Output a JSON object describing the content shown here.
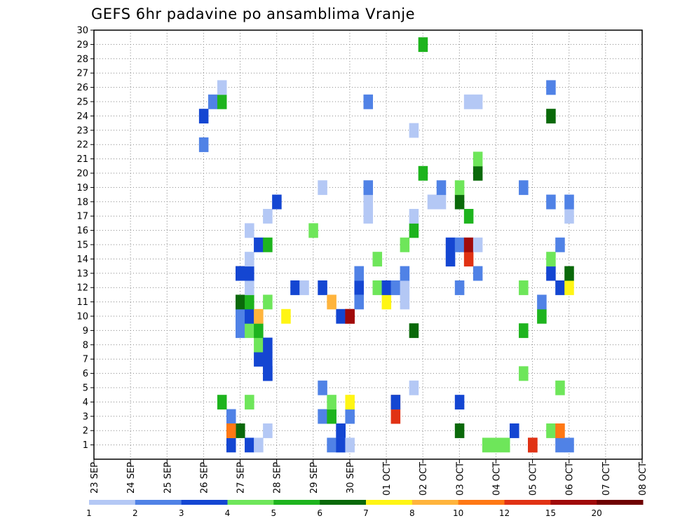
{
  "chart_data": {
    "type": "heatmap",
    "title": "GEFS 6hr padavine po ansamblima Vranje",
    "x_tick_labels": [
      "23 SEP",
      "24 SEP",
      "25 SEP",
      "26 SEP",
      "27 SEP",
      "28 SEP",
      "29 SEP",
      "30 SEP",
      "01 OCT",
      "02 OCT",
      "03 OCT",
      "04 OCT",
      "05 OCT",
      "06 OCT",
      "07 OCT",
      "08 OCT"
    ],
    "y_tick_labels": [
      "1",
      "2",
      "3",
      "4",
      "5",
      "6",
      "7",
      "8",
      "9",
      "10",
      "11",
      "12",
      "13",
      "14",
      "15",
      "16",
      "17",
      "18",
      "19",
      "20",
      "21",
      "22",
      "23",
      "24",
      "25",
      "26",
      "27",
      "28",
      "29",
      "30"
    ],
    "x_range": [
      "23 SEP 00Z",
      "08 OCT 00Z"
    ],
    "y_range": [
      0,
      30
    ],
    "grid": true,
    "legend": {
      "position": "bottom",
      "labels": [
        "1",
        "2",
        "3",
        "4",
        "5",
        "6",
        "7",
        "8",
        "10",
        "12",
        "15",
        "20"
      ],
      "colors": [
        "#b4c8f5",
        "#5082e6",
        "#1446d2",
        "#6ee65a",
        "#1eb41e",
        "#0a690a",
        "#fff514",
        "#ffb43c",
        "#ff7814",
        "#e13214",
        "#a00a0a",
        "#6e0000"
      ]
    },
    "cell_format": "[x_step_6hr, ensemble_member, class_index]",
    "cells": [
      [
        15,
        3,
        2
      ],
      [
        25,
        3,
        2
      ],
      [
        25,
        5,
        2
      ],
      [
        26,
        3,
        2
      ],
      [
        27,
        2,
        3
      ],
      [
        16,
        10,
        2
      ],
      [
        16,
        13,
        8
      ],
      [
        30,
        25,
        2
      ],
      [
        27,
        2,
        3
      ],
      [
        27,
        1,
        2
      ],
      [
        14,
        4,
        5
      ],
      [
        17,
        1,
        3
      ],
      [
        15,
        2,
        5
      ],
      [
        16,
        2,
        6
      ],
      [
        17,
        4,
        4
      ],
      [
        19,
        6,
        3
      ],
      [
        19,
        7,
        3
      ],
      [
        12,
        22,
        2
      ],
      [
        12,
        24,
        3
      ],
      [
        13,
        25,
        2
      ],
      [
        14,
        25,
        5
      ],
      [
        14,
        26,
        1
      ],
      [
        15,
        1,
        3
      ],
      [
        15,
        2,
        4
      ],
      [
        15,
        2,
        9
      ],
      [
        16,
        9,
        2
      ],
      [
        16,
        11,
        6
      ],
      [
        16,
        13,
        3
      ],
      [
        17,
        9,
        4
      ],
      [
        17,
        10,
        3
      ],
      [
        17,
        11,
        5
      ],
      [
        17,
        12,
        1
      ],
      [
        17,
        13,
        3
      ],
      [
        17,
        14,
        1
      ],
      [
        17,
        16,
        1
      ],
      [
        18,
        1,
        1
      ],
      [
        18,
        7,
        3
      ],
      [
        18,
        8,
        4
      ],
      [
        18,
        9,
        5
      ],
      [
        18,
        10,
        8
      ],
      [
        18,
        15,
        3
      ],
      [
        19,
        2,
        1
      ],
      [
        19,
        6,
        3
      ],
      [
        19,
        8,
        3
      ],
      [
        19,
        11,
        4
      ],
      [
        19,
        15,
        5
      ],
      [
        19,
        17,
        1
      ],
      [
        20,
        18,
        3
      ],
      [
        21,
        10,
        7
      ],
      [
        22,
        12,
        3
      ],
      [
        23,
        12,
        1
      ],
      [
        24,
        16,
        4
      ],
      [
        25,
        12,
        3
      ],
      [
        25,
        19,
        1
      ],
      [
        26,
        1,
        2
      ],
      [
        26,
        3,
        5
      ],
      [
        26,
        4,
        4
      ],
      [
        26,
        11,
        8
      ],
      [
        27,
        1,
        3
      ],
      [
        27,
        10,
        3
      ],
      [
        28,
        1,
        1
      ],
      [
        28,
        3,
        2
      ],
      [
        28,
        4,
        7
      ],
      [
        28,
        10,
        10
      ],
      [
        28,
        10,
        11
      ],
      [
        29,
        12,
        3
      ],
      [
        29,
        11,
        2
      ],
      [
        29,
        13,
        2
      ],
      [
        30,
        17,
        1
      ],
      [
        30,
        18,
        1
      ],
      [
        30,
        19,
        2
      ],
      [
        31,
        12,
        4
      ],
      [
        31,
        14,
        4
      ],
      [
        32,
        11,
        7
      ],
      [
        32,
        12,
        3
      ],
      [
        33,
        3,
        10
      ],
      [
        33,
        4,
        9
      ],
      [
        33,
        4,
        3
      ],
      [
        33,
        12,
        2
      ],
      [
        34,
        11,
        1
      ],
      [
        34,
        12,
        1
      ],
      [
        34,
        13,
        2
      ],
      [
        34,
        15,
        4
      ],
      [
        35,
        5,
        1
      ],
      [
        35,
        9,
        6
      ],
      [
        35,
        16,
        5
      ],
      [
        35,
        17,
        1
      ],
      [
        35,
        23,
        1
      ],
      [
        36,
        20,
        5
      ],
      [
        36,
        29,
        5
      ],
      [
        37,
        18,
        1
      ],
      [
        38,
        18,
        1
      ],
      [
        38,
        19,
        2
      ],
      [
        39,
        14,
        3
      ],
      [
        39,
        15,
        3
      ],
      [
        40,
        2,
        6
      ],
      [
        40,
        4,
        3
      ],
      [
        40,
        12,
        2
      ],
      [
        40,
        15,
        2
      ],
      [
        40,
        18,
        6
      ],
      [
        40,
        19,
        4
      ],
      [
        41,
        14,
        10
      ],
      [
        41,
        15,
        11
      ],
      [
        41,
        17,
        5
      ],
      [
        41,
        25,
        1
      ],
      [
        42,
        13,
        2
      ],
      [
        42,
        15,
        1
      ],
      [
        42,
        20,
        6
      ],
      [
        42,
        21,
        4
      ],
      [
        42,
        25,
        1
      ],
      [
        43,
        1,
        4
      ],
      [
        44,
        1,
        4
      ],
      [
        45,
        1,
        4
      ],
      [
        46,
        2,
        3
      ],
      [
        47,
        6,
        4
      ],
      [
        47,
        9,
        5
      ],
      [
        47,
        12,
        4
      ],
      [
        47,
        19,
        2
      ],
      [
        48,
        1,
        11
      ],
      [
        48,
        1,
        10
      ],
      [
        49,
        10,
        5
      ],
      [
        49,
        11,
        2
      ],
      [
        50,
        2,
        4
      ],
      [
        50,
        13,
        3
      ],
      [
        50,
        14,
        4
      ],
      [
        50,
        18,
        2
      ],
      [
        50,
        24,
        6
      ],
      [
        50,
        26,
        2
      ],
      [
        51,
        1,
        2
      ],
      [
        51,
        2,
        9
      ],
      [
        51,
        5,
        4
      ],
      [
        51,
        12,
        3
      ],
      [
        51,
        15,
        2
      ],
      [
        52,
        1,
        2
      ],
      [
        52,
        12,
        7
      ],
      [
        52,
        13,
        6
      ],
      [
        52,
        17,
        1
      ],
      [
        52,
        18,
        2
      ]
    ]
  }
}
